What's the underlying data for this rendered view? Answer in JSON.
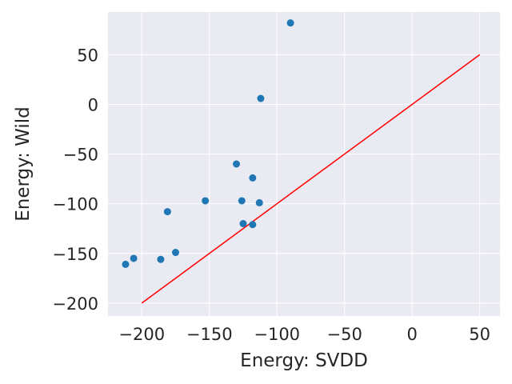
{
  "chart_data": {
    "type": "scatter",
    "title": "",
    "xlabel": "Energy: SVDD",
    "ylabel": "Energy: Wild",
    "xlim": [
      -225,
      65
    ],
    "ylim": [
      -213,
      93
    ],
    "xticks": [
      -200,
      -150,
      -100,
      -50,
      0,
      50
    ],
    "yticks": [
      -200,
      -150,
      -100,
      -50,
      0,
      50
    ],
    "xtick_labels": [
      "−200",
      "−150",
      "−100",
      "−50",
      "0",
      "50"
    ],
    "ytick_labels": [
      "−200",
      "−150",
      "−100",
      "−50",
      "0",
      "50"
    ],
    "grid": true,
    "background": "#eaeaf2",
    "grid_color": "#ffffff",
    "point_color": "#1f77b4",
    "line_color": "#ff0000",
    "points": [
      {
        "x": -90,
        "y": 82
      },
      {
        "x": -112,
        "y": 6
      },
      {
        "x": -130,
        "y": -60
      },
      {
        "x": -118,
        "y": -74
      },
      {
        "x": -153,
        "y": -97
      },
      {
        "x": -126,
        "y": -97
      },
      {
        "x": -113,
        "y": -99
      },
      {
        "x": -181,
        "y": -108
      },
      {
        "x": -125,
        "y": -120
      },
      {
        "x": -118,
        "y": -121
      },
      {
        "x": -175,
        "y": -149
      },
      {
        "x": -186,
        "y": -156
      },
      {
        "x": -206,
        "y": -155
      },
      {
        "x": -212,
        "y": -161
      }
    ],
    "reference_line": {
      "x": [
        -200,
        50
      ],
      "y": [
        -200,
        50
      ]
    }
  }
}
